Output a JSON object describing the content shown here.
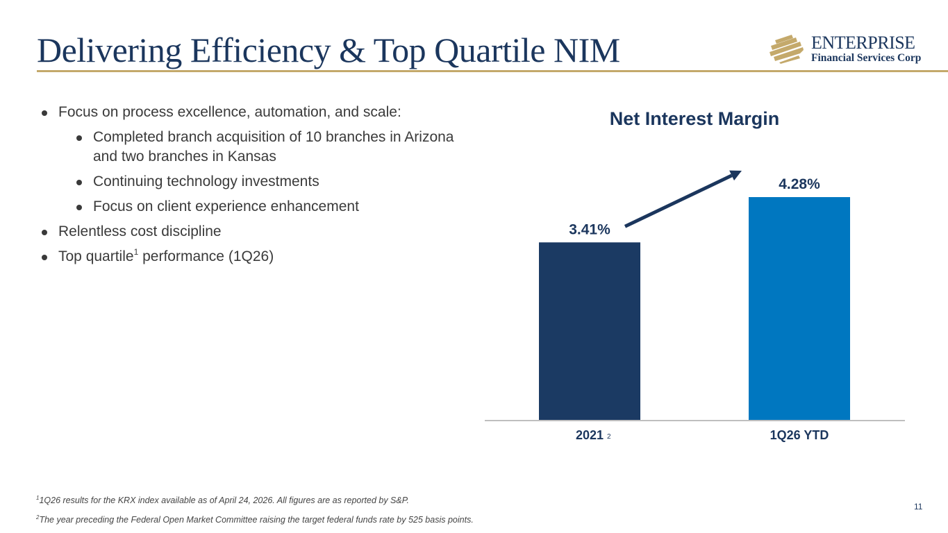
{
  "header": {
    "title": "Delivering Efficiency & Top Quartile NIM",
    "logo": {
      "icon": "enterprise-stripes-logo-icon",
      "name": "ENTERPRISE",
      "subtitle": "Financial Services Corp"
    }
  },
  "bullets": [
    {
      "level": 1,
      "text": "Focus on process excellence, automation, and scale:"
    },
    {
      "level": 2,
      "text": "Completed branch acquisition of 10 branches in Arizona and two branches in Kansas"
    },
    {
      "level": 2,
      "text": "Continuing technology investments"
    },
    {
      "level": 2,
      "text": "Focus on client experience enhancement"
    },
    {
      "level": 1,
      "text": "Relentless cost discipline"
    },
    {
      "level": 1,
      "text_before": "Top quartile",
      "sup": "1",
      "text_after": " performance (1Q26)"
    }
  ],
  "chart_data": {
    "type": "bar",
    "title": "Net Interest Margin",
    "categories": [
      "2021",
      "1Q26 YTD"
    ],
    "category_footnotes": [
      "2",
      ""
    ],
    "values": [
      3.41,
      4.28
    ],
    "value_labels": [
      "3.41%",
      "4.28%"
    ],
    "unit": "%",
    "colors": [
      "#1b3a63",
      "#0077c0"
    ],
    "xlabel": "",
    "ylabel": "",
    "ylim": [
      0,
      4.6
    ],
    "grid": false,
    "legend": "none",
    "annotations": [
      {
        "type": "arrow",
        "from": "2021",
        "to": "1Q26 YTD",
        "meaning": "increase"
      }
    ]
  },
  "footnotes": [
    {
      "mark": "1",
      "text": "1Q26 results for the KRX index available as of April 24, 2026. All figures are as reported by S&P."
    },
    {
      "mark": "2",
      "text": "The year preceding the Federal Open Market Committee raising the target federal funds rate by 525 basis points."
    }
  ],
  "page_number": "11",
  "colors": {
    "navy": "#1b365d",
    "gold": "#c4a96b",
    "blue": "#0077c0",
    "text": "#3a3a3a"
  }
}
